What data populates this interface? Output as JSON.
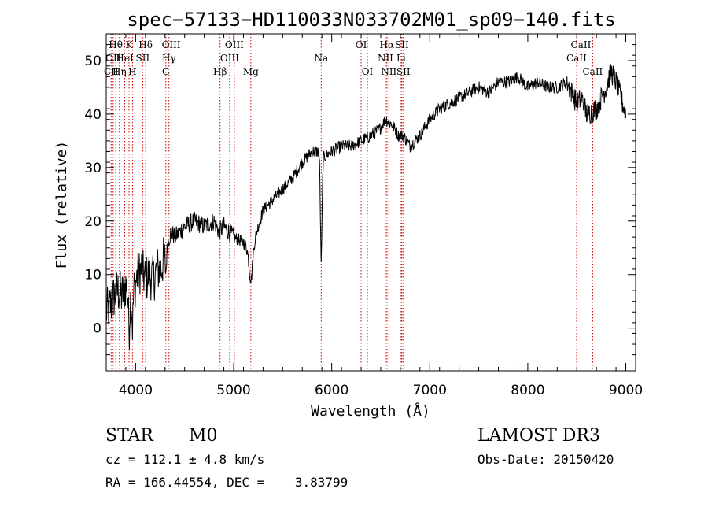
{
  "chart_data": {
    "type": "line",
    "title": "spec−57133−HD110033N033702M01_sp09−140.fits",
    "xlabel": "Wavelength (Å)",
    "ylabel": "Flux (relative)",
    "xlim": [
      3700,
      9100
    ],
    "ylim": [
      -8,
      55
    ],
    "xticks": [
      4000,
      5000,
      6000,
      7000,
      8000,
      9000
    ],
    "yticks": [
      0,
      10,
      20,
      30,
      40,
      50
    ],
    "grid": false,
    "series": [
      {
        "name": "spectrum",
        "anchors": [
          [
            3700,
            3
          ],
          [
            3740,
            4
          ],
          [
            3780,
            6
          ],
          [
            3820,
            7
          ],
          [
            3860,
            6
          ],
          [
            3900,
            8
          ],
          [
            3940,
            5
          ],
          [
            3980,
            7
          ],
          [
            4020,
            10
          ],
          [
            4060,
            11
          ],
          [
            4100,
            9
          ],
          [
            4140,
            10
          ],
          [
            4180,
            9
          ],
          [
            4220,
            11
          ],
          [
            4260,
            11
          ],
          [
            4300,
            14
          ],
          [
            4330,
            16
          ],
          [
            4360,
            18
          ],
          [
            4400,
            17
          ],
          [
            4450,
            18
          ],
          [
            4500,
            19
          ],
          [
            4600,
            20
          ],
          [
            4700,
            19
          ],
          [
            4800,
            20
          ],
          [
            4850,
            18
          ],
          [
            4900,
            19
          ],
          [
            5000,
            17
          ],
          [
            5100,
            16
          ],
          [
            5180,
            14
          ],
          [
            5250,
            19
          ],
          [
            5300,
            22
          ],
          [
            5400,
            24
          ],
          [
            5500,
            26
          ],
          [
            5600,
            28
          ],
          [
            5700,
            31
          ],
          [
            5800,
            33
          ],
          [
            5880,
            33
          ],
          [
            5920,
            32
          ],
          [
            6000,
            33
          ],
          [
            6100,
            34
          ],
          [
            6200,
            34
          ],
          [
            6300,
            35
          ],
          [
            6400,
            36
          ],
          [
            6480,
            37
          ],
          [
            6550,
            39
          ],
          [
            6620,
            38
          ],
          [
            6680,
            36
          ],
          [
            6730,
            36
          ],
          [
            6800,
            34
          ],
          [
            6900,
            36
          ],
          [
            7000,
            39
          ],
          [
            7100,
            41
          ],
          [
            7200,
            42
          ],
          [
            7300,
            43
          ],
          [
            7400,
            44
          ],
          [
            7500,
            45
          ],
          [
            7600,
            44
          ],
          [
            7700,
            46
          ],
          [
            7800,
            46
          ],
          [
            7900,
            47
          ],
          [
            8000,
            45
          ],
          [
            8100,
            46
          ],
          [
            8200,
            45
          ],
          [
            8300,
            45
          ],
          [
            8400,
            46
          ],
          [
            8500,
            42
          ],
          [
            8550,
            43
          ],
          [
            8600,
            40
          ],
          [
            8700,
            41
          ],
          [
            8800,
            45
          ],
          [
            8850,
            48
          ],
          [
            8900,
            46
          ],
          [
            8950,
            43
          ],
          [
            9000,
            40
          ]
        ],
        "absorption_dips": [
          {
            "wavelength": 5893,
            "depth": 20,
            "width": 12
          },
          {
            "wavelength": 5175,
            "depth": 5,
            "width": 25
          },
          {
            "wavelength": 4308,
            "depth": 4,
            "width": 10
          },
          {
            "wavelength": 3933,
            "depth": 6,
            "width": 8
          },
          {
            "wavelength": 3968,
            "depth": 6,
            "width": 8
          }
        ]
      }
    ],
    "line_markers": [
      {
        "wavelength": 3750,
        "label": "CII",
        "row": 3
      },
      {
        "wavelength": 3771,
        "label": "OII",
        "row": 2
      },
      {
        "wavelength": 3797,
        "label": "Hθ",
        "row": 1
      },
      {
        "wavelength": 3835,
        "label": "Hη",
        "row": 3
      },
      {
        "wavelength": 3889,
        "label": "HeI",
        "row": 2
      },
      {
        "wavelength": 3933,
        "label": "K",
        "row": 1
      },
      {
        "wavelength": 3968,
        "label": "H",
        "row": 3
      },
      {
        "wavelength": 4072,
        "label": "SII",
        "row": 2
      },
      {
        "wavelength": 4102,
        "label": "Hδ",
        "row": 1
      },
      {
        "wavelength": 4308,
        "label": "G",
        "row": 3
      },
      {
        "wavelength": 4340,
        "label": "Hγ",
        "row": 2
      },
      {
        "wavelength": 4363,
        "label": "OIII",
        "row": 1
      },
      {
        "wavelength": 4861,
        "label": "Hβ",
        "row": 3
      },
      {
        "wavelength": 4959,
        "label": "OIII",
        "row": 2
      },
      {
        "wavelength": 5007,
        "label": "OIII",
        "row": 1
      },
      {
        "wavelength": 5175,
        "label": "Mg",
        "row": 3
      },
      {
        "wavelength": 5893,
        "label": "Na",
        "row": 2
      },
      {
        "wavelength": 6300,
        "label": "OI",
        "row": 1
      },
      {
        "wavelength": 6364,
        "label": "OI",
        "row": 3
      },
      {
        "wavelength": 6548,
        "label": "NII",
        "row": 2
      },
      {
        "wavelength": 6563,
        "label": "Hα",
        "row": 1
      },
      {
        "wavelength": 6583,
        "label": "NII",
        "row": 3
      },
      {
        "wavelength": 6708,
        "label": "Li",
        "row": 2
      },
      {
        "wavelength": 6716,
        "label": "SII",
        "row": 1
      },
      {
        "wavelength": 6731,
        "label": "SII",
        "row": 3
      },
      {
        "wavelength": 8498,
        "label": "CaII",
        "row": 2
      },
      {
        "wavelength": 8542,
        "label": "CaII",
        "row": 1
      },
      {
        "wavelength": 8662,
        "label": "CaII",
        "row": 3
      }
    ]
  },
  "info": {
    "object_class": "STAR",
    "subclass": "M0",
    "survey": "LAMOST DR3",
    "velocity": "cz = 112.1 ± 4.8 km/s",
    "obs_date": "Obs-Date: 20150420",
    "coords": "RA = 166.44554, DEC =    3.83799"
  },
  "colors": {
    "spectrum": "#000000",
    "markers": "#cc0000",
    "axes": "#000000",
    "background": "#ffffff"
  }
}
